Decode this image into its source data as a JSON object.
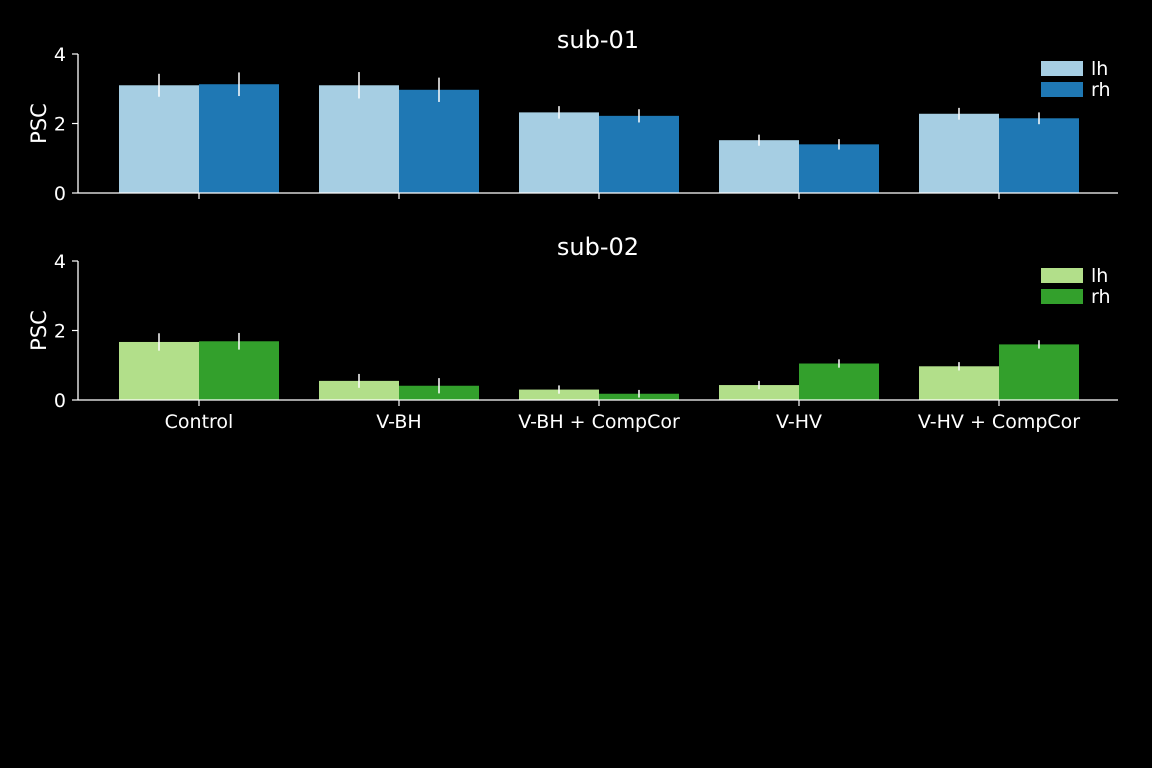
{
  "chart_data": [
    {
      "type": "bar",
      "title": "sub-01",
      "xlabel": "",
      "ylabel": "PSC",
      "ylim": [
        0,
        4
      ],
      "yticks": [
        "0",
        "2",
        "4"
      ],
      "categories": [
        "Control",
        "V-BH",
        "V-BH + CompCor",
        "V-HV",
        "V-HV + CompCor"
      ],
      "show_xtick_labels": false,
      "grid": false,
      "legend_position": "top-right",
      "series": [
        {
          "name": "lh",
          "color": "#a6cee3",
          "values": [
            3.1,
            3.1,
            2.32,
            1.52,
            2.28
          ],
          "errors": [
            0.33,
            0.38,
            0.18,
            0.16,
            0.17
          ]
        },
        {
          "name": "rh",
          "color": "#1f78b4",
          "values": [
            3.13,
            2.97,
            2.22,
            1.4,
            2.15
          ],
          "errors": [
            0.34,
            0.35,
            0.19,
            0.15,
            0.17
          ]
        }
      ]
    },
    {
      "type": "bar",
      "title": "sub-02",
      "xlabel": "",
      "ylabel": "PSC",
      "ylim": [
        0,
        4
      ],
      "yticks": [
        "0",
        "2",
        "4"
      ],
      "categories": [
        "Control",
        "V-BH",
        "V-BH + CompCor",
        "V-HV",
        "V-HV + CompCor"
      ],
      "show_xtick_labels": true,
      "grid": false,
      "legend_position": "top-right",
      "series": [
        {
          "name": "lh",
          "color": "#b2df8a",
          "values": [
            1.67,
            0.55,
            0.3,
            0.43,
            0.97
          ],
          "errors": [
            0.25,
            0.2,
            0.12,
            0.12,
            0.12
          ]
        },
        {
          "name": "rh",
          "color": "#33a02c",
          "values": [
            1.69,
            0.41,
            0.18,
            1.05,
            1.6
          ],
          "errors": [
            0.24,
            0.22,
            0.11,
            0.12,
            0.12
          ]
        }
      ]
    }
  ]
}
